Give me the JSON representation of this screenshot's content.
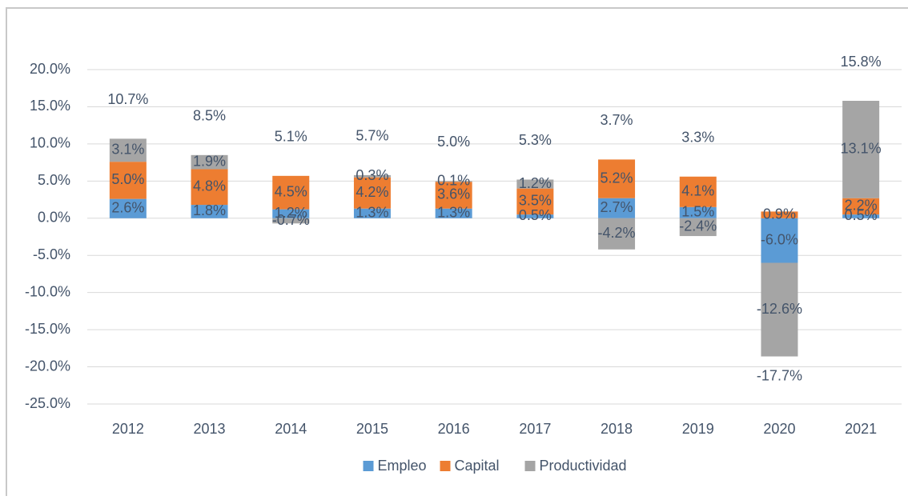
{
  "chart_data": {
    "type": "stacked_bar",
    "categories": [
      "2012",
      "2013",
      "2014",
      "2015",
      "2016",
      "2017",
      "2018",
      "2019",
      "2020",
      "2021"
    ],
    "series": [
      {
        "name": "Empleo",
        "color": "#5b9bd5",
        "values": [
          2.6,
          1.8,
          1.2,
          1.3,
          1.3,
          0.5,
          2.7,
          1.5,
          -6.0,
          0.5
        ],
        "value_labels": [
          "2.6%",
          "1.8%",
          "1.2%",
          "1.3%",
          "1.3%",
          "0.5%",
          "2.7%",
          "1.5%",
          "-6.0%",
          "0.5%"
        ]
      },
      {
        "name": "Capital",
        "color": "#ed7d31",
        "values": [
          5.0,
          4.8,
          4.5,
          4.2,
          3.6,
          3.5,
          5.2,
          4.1,
          0.9,
          2.2
        ],
        "value_labels": [
          "5.0%",
          "4.8%",
          "4.5%",
          "4.2%",
          "3.6%",
          "3.5%",
          "5.2%",
          "4.1%",
          "0.9%",
          "2.2%"
        ]
      },
      {
        "name": "Productividad",
        "color": "#a5a5a5",
        "values": [
          3.1,
          1.9,
          -0.7,
          0.3,
          0.1,
          1.2,
          -4.2,
          -2.4,
          -12.6,
          13.1
        ],
        "value_labels": [
          "3.1%",
          "1.9%",
          "-0.7%",
          "0.3%",
          "0.1%",
          "1.2%",
          "-4.2%",
          "-2.4%",
          "-12.6%",
          "13.1%"
        ]
      }
    ],
    "totals": {
      "values": [
        10.7,
        8.5,
        5.1,
        5.7,
        5.0,
        5.3,
        3.7,
        3.3,
        -17.7,
        15.8
      ],
      "value_labels": [
        "10.7%",
        "8.5%",
        "5.1%",
        "5.7%",
        "5.0%",
        "5.3%",
        "3.7%",
        "3.3%",
        "-17.7%",
        "15.8%"
      ]
    },
    "ylim": [
      -25,
      20
    ],
    "yticks": [
      {
        "value": -25,
        "label": "-25.0%"
      },
      {
        "value": -20,
        "label": "-20.0%"
      },
      {
        "value": -15,
        "label": "-15.0%"
      },
      {
        "value": -10,
        "label": "-10.0%"
      },
      {
        "value": -5,
        "label": "-5.0%"
      },
      {
        "value": 0,
        "label": "0.0%"
      },
      {
        "value": 5,
        "label": "5.0%"
      },
      {
        "value": 10,
        "label": "10.0%"
      },
      {
        "value": 15,
        "label": "15.0%"
      },
      {
        "value": 20,
        "label": "20.0%"
      }
    ],
    "grid": true,
    "legend": "bottom"
  }
}
